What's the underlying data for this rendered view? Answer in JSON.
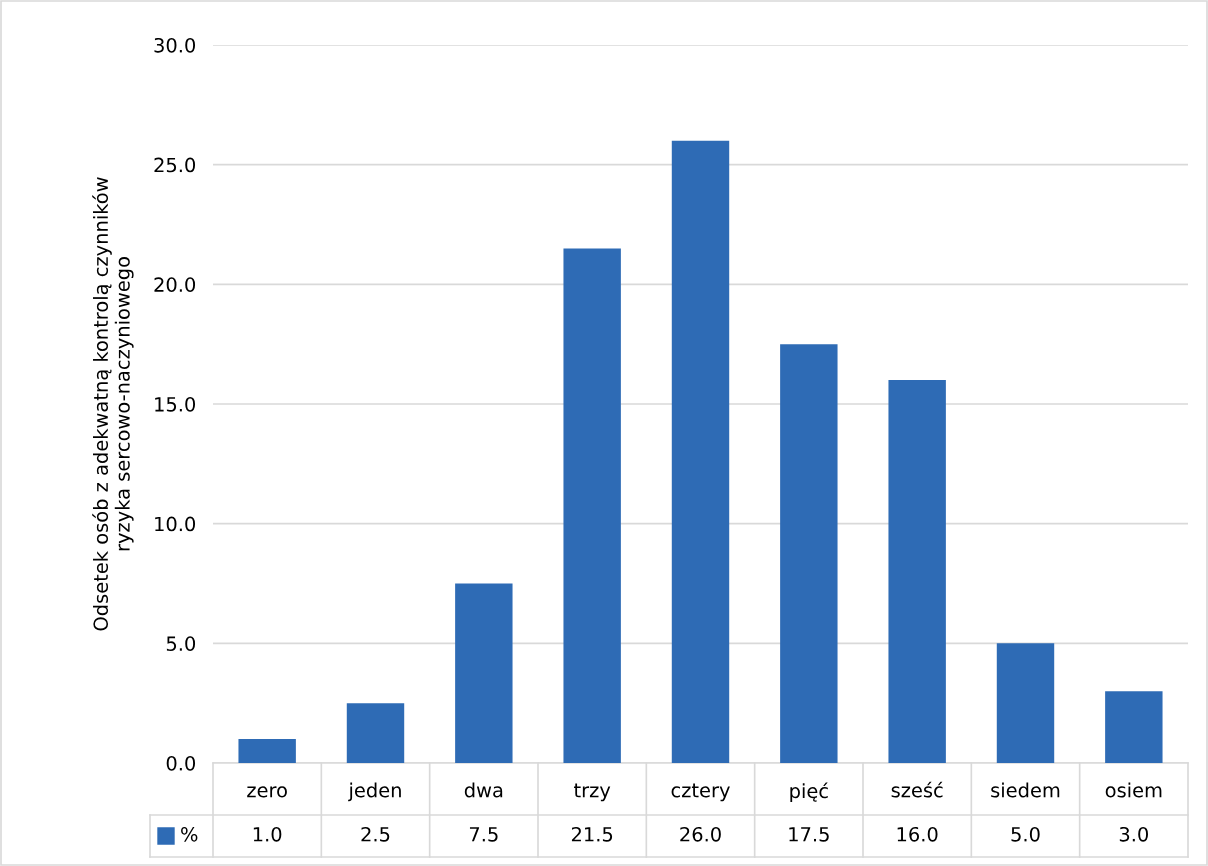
{
  "chart_data": {
    "type": "bar",
    "ylabel": "Odsetek osób z adekwatną kontrolą czynników\nryzyka sercowo-naczyniowego",
    "categories": [
      "zero",
      "jeden",
      "dwa",
      "trzy",
      "cztery",
      "pięć",
      "sześć",
      "siedem",
      "osiem"
    ],
    "series": [
      {
        "name": "%",
        "color": "#2e6bb5",
        "values": [
          1.0,
          2.5,
          7.5,
          21.5,
          26.0,
          17.5,
          16.0,
          5.0,
          3.0
        ],
        "value_labels": [
          "1.0",
          "2.5",
          "7.5",
          "21.5",
          "26.0",
          "17.5",
          "16.0",
          "5.0",
          "3.0"
        ]
      }
    ],
    "ylim": [
      0,
      30
    ],
    "yticks": [
      {
        "value": 0,
        "label": "0.0"
      },
      {
        "value": 5,
        "label": "5.0"
      },
      {
        "value": 10,
        "label": "10.0"
      },
      {
        "value": 15,
        "label": "15.0"
      },
      {
        "value": 20,
        "label": "20.0"
      },
      {
        "value": 25,
        "label": "25.0"
      },
      {
        "value": 30,
        "label": "30.0"
      }
    ],
    "grid": "y",
    "legend": "bottom"
  }
}
